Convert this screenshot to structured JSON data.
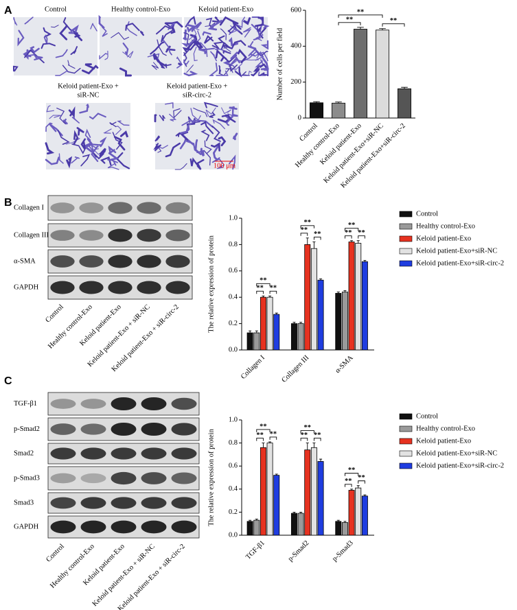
{
  "panels": [
    "A",
    "B",
    "C"
  ],
  "micrographs": [
    {
      "caption": [
        "Control"
      ]
    },
    {
      "caption": [
        "Healthy control-Exo"
      ]
    },
    {
      "caption": [
        "Keloid patient-Exo"
      ]
    },
    {
      "caption": [
        "Keloid patient-Exo +",
        "siR-NC"
      ]
    },
    {
      "caption": [
        "Keloid patient-Exo +",
        "siR-circ-2"
      ],
      "scale_bar": "100 μm"
    }
  ],
  "blots": [
    {
      "rows": [
        "Collagen I",
        "Collagen III",
        "α-SMA",
        "GAPDH"
      ],
      "lanes": [
        "Control",
        "Healthy control-Exo",
        "Keloid patient-Exo",
        "Keloid patient-Exo + siR-NC",
        "Keloid patient-Exo + siR-circ-2"
      ]
    },
    {
      "rows": [
        "TGF-β1",
        "p-Smad2",
        "Smad2",
        "p-Smad3",
        "Smad3",
        "GAPDH"
      ],
      "lanes": [
        "Control",
        "Healthy control-Exo",
        "Keloid patient-Exo",
        "Keloid patient-Exo + siR-NC",
        "Keloid patient-Exo + siR-circ-2"
      ]
    }
  ],
  "chart_data": [
    {
      "type": "bar",
      "y_label": "Number of cells per field",
      "categories": [
        "Control",
        "Healthy control-Exo",
        "Keloid patient-Exo",
        "Keloid patient-Exo+siR-NC",
        "Keloid patient-Exo+siR-circ-2"
      ],
      "values": [
        85,
        83,
        495,
        490,
        163
      ],
      "errors": [
        6,
        6,
        10,
        8,
        8
      ],
      "colors": [
        "#111111",
        "#8c8c8c",
        "#6e6e6e",
        "#dcdcdc",
        "#555555"
      ],
      "ylim": [
        0,
        600
      ],
      "yticks": [
        0,
        200,
        400,
        600
      ],
      "annotations": [
        "**",
        "**",
        "**"
      ]
    },
    {
      "type": "bar",
      "y_label": "The relative expression of protein",
      "categories": [
        "Collagen I",
        "Collagen III",
        "α-SMA"
      ],
      "series": [
        {
          "name": "Control",
          "color": "#111111",
          "values": [
            0.13,
            0.2,
            0.43
          ],
          "errors": [
            0.015,
            0.01,
            0.01
          ]
        },
        {
          "name": "Healthy control-Exo",
          "color": "#9a9a9a",
          "values": [
            0.13,
            0.2,
            0.44
          ],
          "errors": [
            0.015,
            0.01,
            0.01
          ]
        },
        {
          "name": "Keloid patient-Exo",
          "color": "#e63220",
          "values": [
            0.4,
            0.8,
            0.82
          ],
          "errors": [
            0.01,
            0.05,
            0.01
          ]
        },
        {
          "name": "Keloid patient-Exo+siR-NC",
          "color": "#e2e2e2",
          "values": [
            0.4,
            0.77,
            0.81
          ],
          "errors": [
            0.01,
            0.05,
            0.02
          ]
        },
        {
          "name": "Keloid patient-Exo+siR-circ-2",
          "color": "#1f3de0",
          "values": [
            0.27,
            0.53,
            0.67
          ],
          "errors": [
            0.01,
            0.01,
            0.01
          ]
        }
      ],
      "ylim": [
        0,
        1
      ],
      "yticks": [
        {
          "value": 0,
          "label": "0.0"
        },
        0.2,
        0.4,
        0.6,
        0.8,
        {
          "value": 1,
          "label": "1.0"
        }
      ],
      "legend": "right",
      "annotations": [
        "**",
        "**",
        "**",
        "**",
        "**",
        "**",
        "**",
        "**",
        "**"
      ]
    },
    {
      "type": "bar",
      "y_label": "The relative expression of protein",
      "categories": [
        "TGF-β1",
        "p-Smad2",
        "p-Smad3"
      ],
      "series": [
        {
          "name": "Control",
          "color": "#111111",
          "values": [
            0.12,
            0.19,
            0.12
          ],
          "errors": [
            0.01,
            0.01,
            0.01
          ]
        },
        {
          "name": "Healthy control-Exo",
          "color": "#9a9a9a",
          "values": [
            0.13,
            0.19,
            0.11
          ],
          "errors": [
            0.01,
            0.01,
            0.01
          ]
        },
        {
          "name": "Keloid patient-Exo",
          "color": "#e63220",
          "values": [
            0.76,
            0.74,
            0.39
          ],
          "errors": [
            0.04,
            0.06,
            0.01
          ]
        },
        {
          "name": "Keloid patient-Exo+siR-NC",
          "color": "#e2e2e2",
          "values": [
            0.8,
            0.76,
            0.41
          ],
          "errors": [
            0.01,
            0.04,
            0.02
          ]
        },
        {
          "name": "Keloid patient-Exo+siR-circ-2",
          "color": "#1f3de0",
          "values": [
            0.52,
            0.64,
            0.34
          ],
          "errors": [
            0.01,
            0.02,
            0.01
          ]
        }
      ],
      "ylim": [
        0,
        1
      ],
      "yticks": [
        {
          "value": 0,
          "label": "0.0"
        },
        0.2,
        0.4,
        0.6,
        0.8,
        {
          "value": 1,
          "label": "1.0"
        }
      ],
      "legend": "right",
      "annotations": [
        "**",
        "**",
        "**",
        "**",
        "**",
        "**",
        "**",
        "**",
        "**"
      ]
    }
  ]
}
